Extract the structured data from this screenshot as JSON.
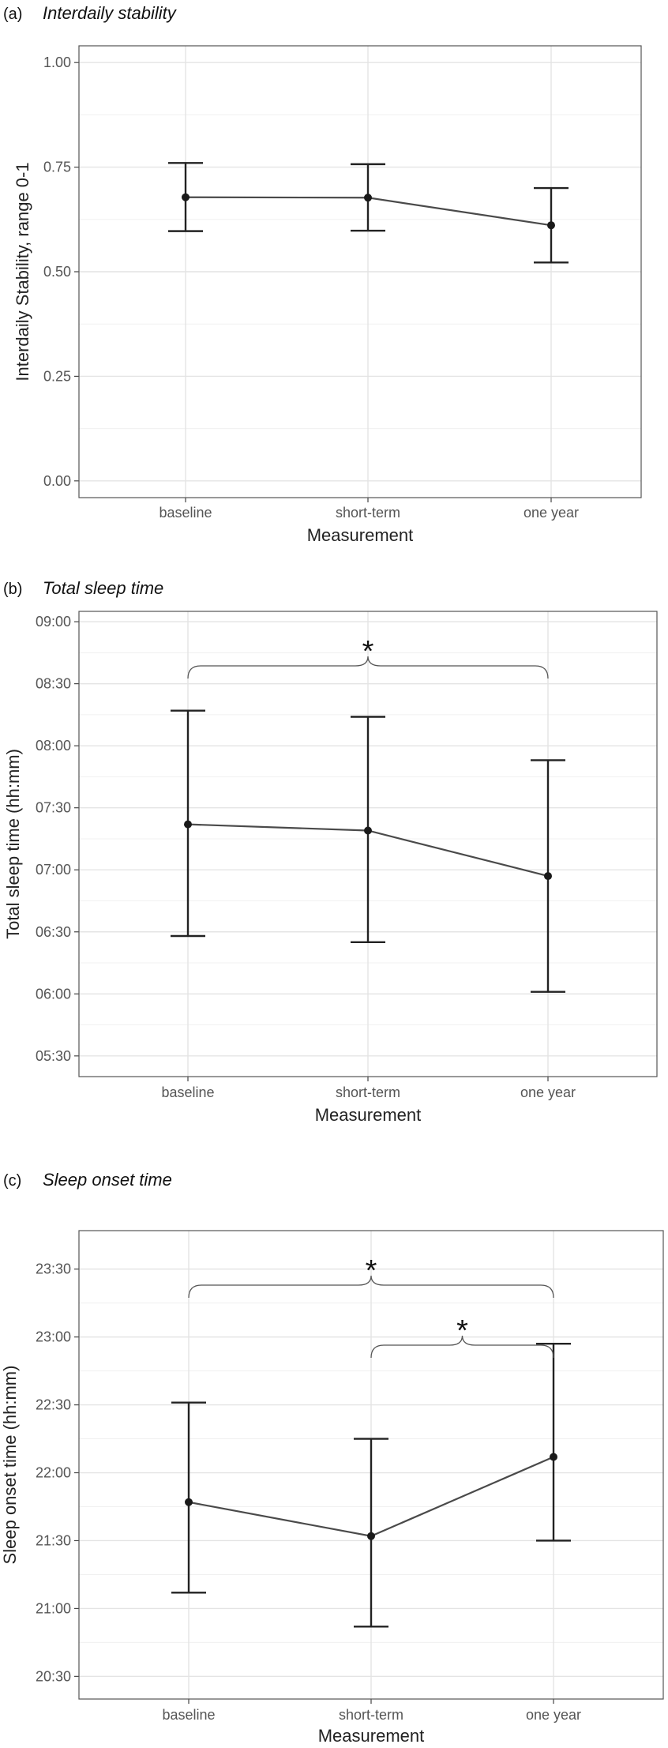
{
  "chart_data": [
    {
      "panel": "(a)",
      "title": "Interdaily stability",
      "type": "line",
      "xlabel": "Measurement",
      "ylabel": "Interdaily Stability, range 0-1",
      "categories": [
        "baseline",
        "short-term",
        "one year"
      ],
      "values": [
        0.678,
        0.677,
        0.611
      ],
      "ci_lower": [
        0.597,
        0.598,
        0.522
      ],
      "ci_upper": [
        0.76,
        0.757,
        0.7
      ],
      "ylim": [
        -0.04,
        1.04
      ],
      "yticks": [
        0,
        0.25,
        0.5,
        0.75,
        1
      ],
      "ytick_labels": [
        "0.00",
        "0.25",
        "0.50",
        "0.75",
        "1.00"
      ],
      "grid": true,
      "significance": []
    },
    {
      "panel": "(b)",
      "title": "Total sleep time",
      "type": "line",
      "xlabel": "Measurement",
      "ylabel": "Total sleep time (hh:mm)",
      "categories": [
        "baseline",
        "short-term",
        "one year"
      ],
      "values": [
        442,
        439,
        417
      ],
      "ci_lower": [
        388,
        385,
        361
      ],
      "ci_upper": [
        497,
        494,
        473
      ],
      "ylim": [
        320,
        545
      ],
      "yticks": [
        330,
        360,
        390,
        420,
        450,
        480,
        510,
        540
      ],
      "ytick_labels": [
        "05:30",
        "06:00",
        "06:30",
        "07:00",
        "07:30",
        "08:00",
        "08:30",
        "09:00"
      ],
      "grid": true,
      "significance": [
        {
          "from": "baseline",
          "to": "one year",
          "label": "*"
        }
      ]
    },
    {
      "panel": "(c)",
      "title": "Sleep onset time",
      "type": "line",
      "xlabel": "Measurement",
      "ylabel": "Sleep onset time (hh:mm)",
      "categories": [
        "baseline",
        "short-term",
        "one year"
      ],
      "values": [
        1307,
        1292,
        1327
      ],
      "ci_lower": [
        1267,
        1252,
        1290
      ],
      "ci_upper": [
        1351,
        1335,
        1377
      ],
      "ylim": [
        1220,
        1427
      ],
      "yticks": [
        1230,
        1260,
        1290,
        1320,
        1350,
        1380,
        1410
      ],
      "ytick_labels": [
        "20:30",
        "21:00",
        "21:30",
        "22:00",
        "22:30",
        "23:00",
        "23:30"
      ],
      "grid": true,
      "significance": [
        {
          "from": "baseline",
          "to": "one year",
          "label": "*"
        },
        {
          "from": "short-term",
          "to": "one year",
          "label": "*"
        }
      ]
    }
  ]
}
